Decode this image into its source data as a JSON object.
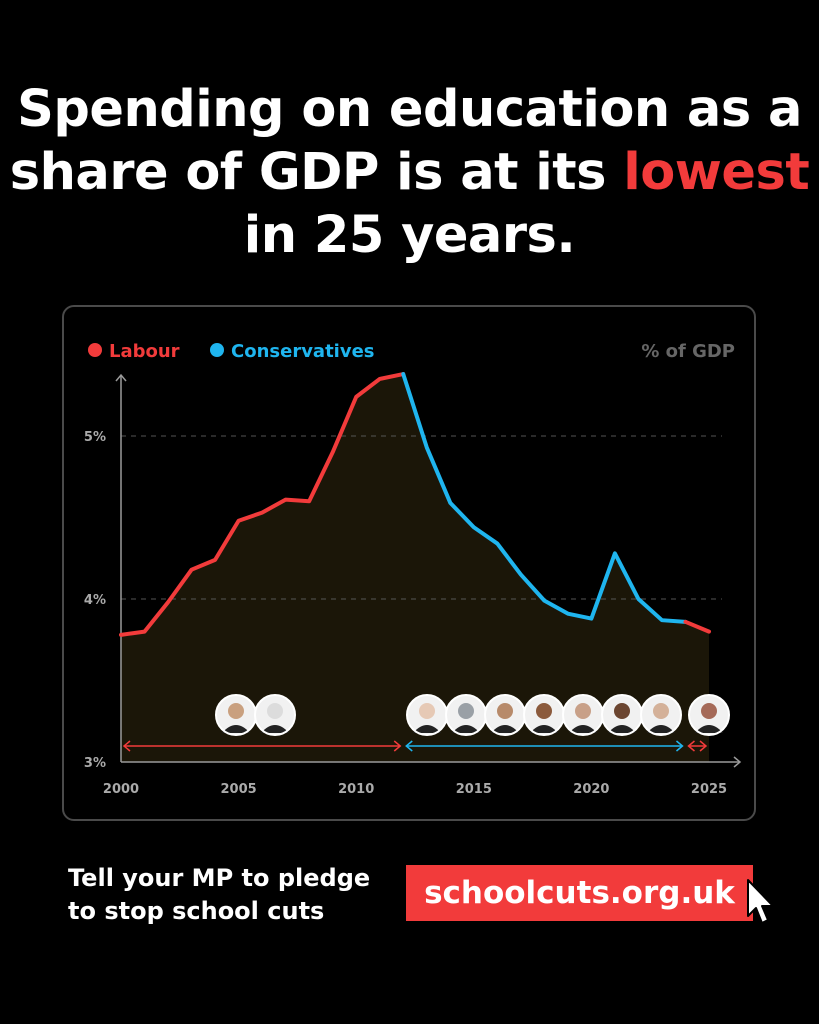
{
  "headline": {
    "part1": "Spending on education as a share of GDP is at its ",
    "highlight": "lowest",
    "part2": " in 25 years."
  },
  "colors": {
    "labour": "#f23b3b",
    "conservative": "#1fb5ef",
    "fill": "#1b1608",
    "grid": "#555555",
    "axis": "#9a9a9a",
    "accent": "#f23b3b"
  },
  "chart_data": {
    "type": "area",
    "ylabel": "% of GDP",
    "ylim": [
      3,
      5.4
    ],
    "xlim": [
      2000,
      2025
    ],
    "yticks": [
      {
        "v": 3,
        "label": "3%"
      },
      {
        "v": 4,
        "label": "4%"
      },
      {
        "v": 5,
        "label": "5%"
      }
    ],
    "xticks": [
      2000,
      2005,
      2010,
      2015,
      2020,
      2025
    ],
    "grid": "dashed horizontal at 4% and 5%",
    "legend": "top-left",
    "series": [
      {
        "name": "Labour",
        "x": [
          2000,
          2001,
          2002,
          2003,
          2004,
          2005,
          2006,
          2007,
          2008,
          2009,
          2010,
          2011,
          2012
        ],
        "values": [
          3.78,
          3.8,
          3.98,
          4.18,
          4.24,
          4.48,
          4.53,
          4.61,
          4.6,
          4.9,
          5.24,
          5.35,
          5.38
        ]
      },
      {
        "name": "Conservatives",
        "x": [
          2012,
          2013,
          2014,
          2015,
          2016,
          2017,
          2018,
          2019,
          2020,
          2021,
          2022,
          2023,
          2024
        ],
        "values": [
          5.38,
          4.93,
          4.59,
          4.44,
          4.34,
          4.15,
          3.99,
          3.91,
          3.88,
          4.28,
          4.0,
          3.87,
          3.86
        ]
      },
      {
        "name": "Labour",
        "x": [
          2024,
          2025
        ],
        "values": [
          3.86,
          3.8
        ]
      }
    ],
    "periods": [
      {
        "party": "Labour",
        "start": 2000,
        "end": 2012,
        "faces": 2
      },
      {
        "party": "Conservatives",
        "start": 2012,
        "end": 2024,
        "faces": 7
      },
      {
        "party": "Labour",
        "start": 2024,
        "end": 2025,
        "faces": 1
      }
    ]
  },
  "cta": {
    "text": "Tell your MP to pledge to stop school cuts",
    "button": "schoolcuts.org.uk"
  }
}
